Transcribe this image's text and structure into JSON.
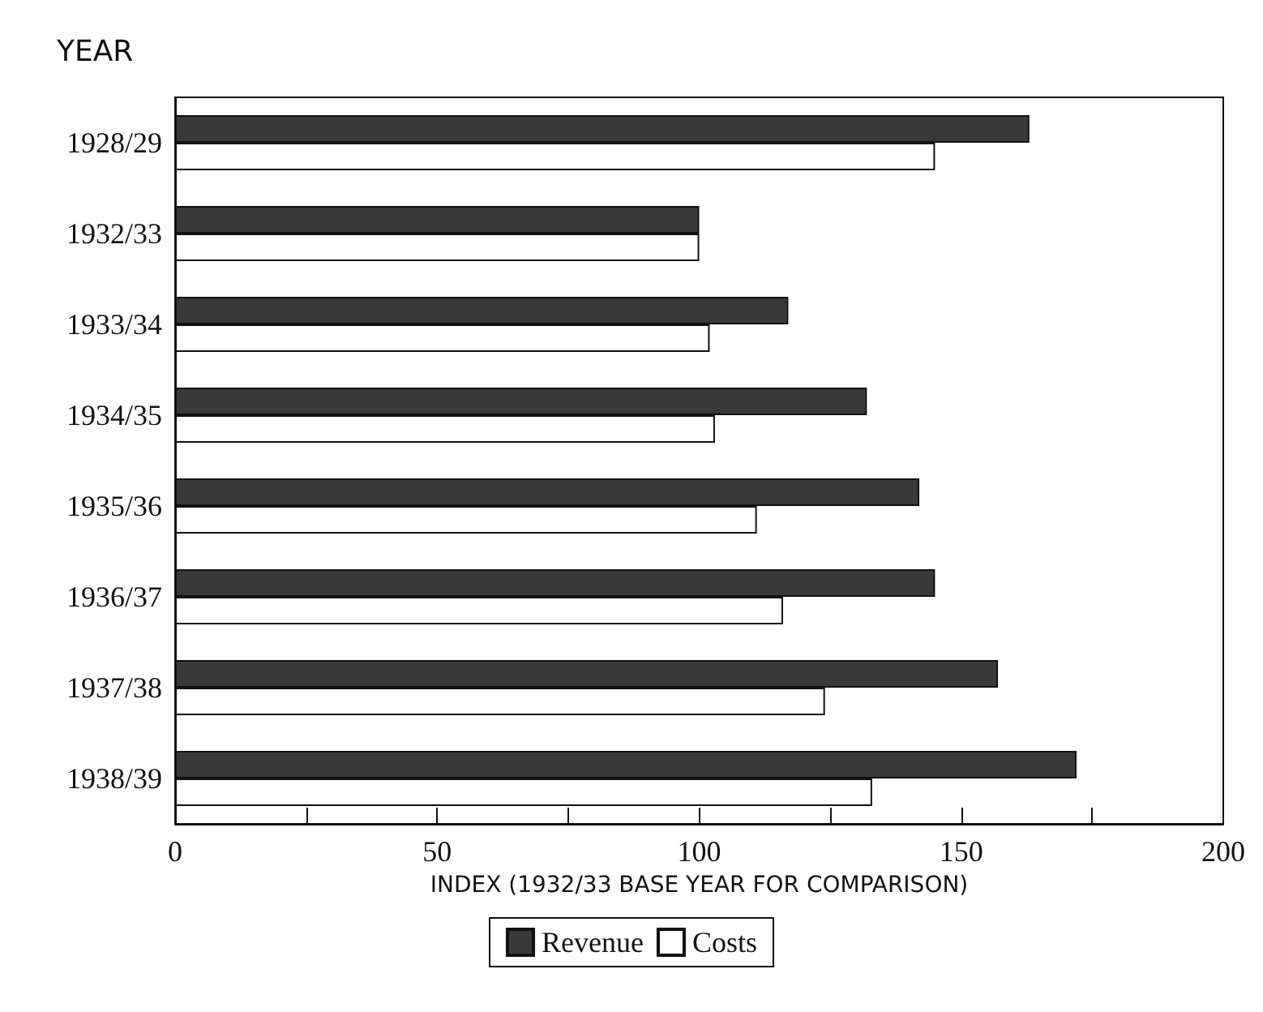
{
  "chart_data": {
    "type": "bar",
    "orientation": "horizontal",
    "ylabel": "YEAR",
    "xlabel": "INDEX (1932/33 BASE YEAR FOR COMPARISON)",
    "categories": [
      "1928/29",
      "1932/33",
      "1933/34",
      "1934/35",
      "1935/36",
      "1936/37",
      "1937/38",
      "1938/39"
    ],
    "series": [
      {
        "name": "Revenue",
        "color": "#3a3a3a",
        "values": [
          163,
          100,
          117,
          132,
          142,
          145,
          157,
          172
        ]
      },
      {
        "name": "Costs",
        "color": "#ffffff",
        "values": [
          145,
          100,
          102,
          103,
          111,
          116,
          124,
          133
        ]
      }
    ],
    "xlim": [
      0,
      200
    ],
    "xticks": [
      0,
      {
        "value": 25,
        "label": null
      },
      50,
      {
        "value": 75,
        "label": null
      },
      100,
      {
        "value": 125,
        "label": null
      },
      150,
      {
        "value": 175,
        "label": null
      },
      200
    ],
    "grid": false,
    "legend": "bottom"
  }
}
